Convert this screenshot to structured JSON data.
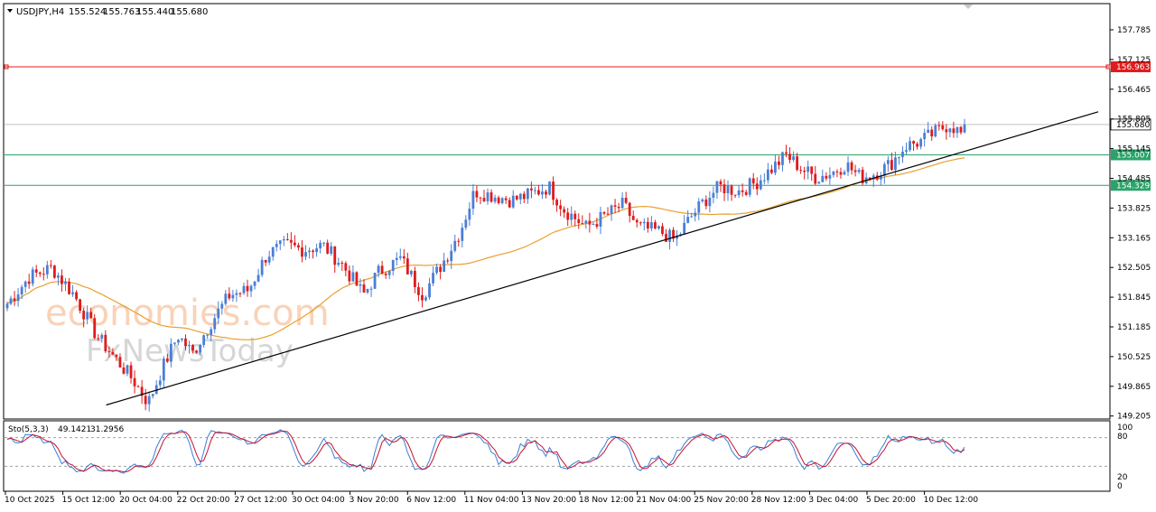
{
  "header": {
    "symbol_tf": "USDJPY,H4",
    "open": "155.524",
    "high": "155.763",
    "low": "155.440",
    "close": "155.680"
  },
  "watermark": {
    "line1": "economies.com",
    "line2": "FxNewsToday"
  },
  "chart_data": [
    {
      "type": "candlestick",
      "symbol": "USDJPY",
      "timeframe": "H4",
      "ylim": [
        149.205,
        158.2
      ],
      "y_ticks": [
        "157.785",
        "157.125",
        "156.465",
        "155.805",
        "155.145",
        "154.485",
        "153.825",
        "153.165",
        "152.505",
        "151.845",
        "151.185",
        "150.525",
        "149.865",
        "149.205"
      ],
      "x_ticks": [
        "10 Oct 2025",
        "15 Oct 12:00",
        "20 Oct 04:00",
        "22 Oct 20:00",
        "27 Oct 12:00",
        "30 Oct 04:00",
        "3 Nov 20:00",
        "6 Nov 12:00",
        "11 Nov 04:00",
        "13 Nov 20:00",
        "18 Nov 12:00",
        "21 Nov 04:00",
        "25 Nov 20:00",
        "28 Nov 12:00",
        "3 Dec 04:00",
        "5 Dec 20:00",
        "10 Dec 12:00"
      ],
      "bullish_color": "#4a7fd6",
      "bearish_color": "#e01b1b",
      "candle_count": 264,
      "close_path": [
        [
          0,
          151.7
        ],
        [
          6,
          152.3
        ],
        [
          12,
          152.5
        ],
        [
          18,
          151.9
        ],
        [
          24,
          151.0
        ],
        [
          30,
          150.4
        ],
        [
          34,
          150.0
        ],
        [
          38,
          149.5
        ],
        [
          42,
          150.3
        ],
        [
          46,
          151.0
        ],
        [
          50,
          150.6
        ],
        [
          55,
          151.3
        ],
        [
          60,
          151.9
        ],
        [
          65,
          152.0
        ],
        [
          70,
          152.8
        ],
        [
          75,
          153.0
        ],
        [
          80,
          152.9
        ],
        [
          85,
          153.0
        ],
        [
          90,
          152.6
        ],
        [
          96,
          151.9
        ],
        [
          100,
          152.4
        ],
        [
          106,
          152.7
        ],
        [
          112,
          151.9
        ],
        [
          118,
          152.7
        ],
        [
          122,
          153.3
        ],
        [
          126,
          154.2
        ],
        [
          131,
          154.1
        ],
        [
          136,
          154.0
        ],
        [
          140,
          154.1
        ],
        [
          146,
          154.3
        ],
        [
          150,
          153.8
        ],
        [
          156,
          153.4
        ],
        [
          160,
          153.6
        ],
        [
          166,
          153.9
        ],
        [
          170,
          153.4
        ],
        [
          176,
          153.3
        ],
        [
          180,
          153.1
        ],
        [
          184,
          153.6
        ],
        [
          188,
          154.0
        ],
        [
          192,
          154.3
        ],
        [
          197,
          154.2
        ],
        [
          202,
          154.4
        ],
        [
          206,
          154.7
        ],
        [
          210,
          155.0
        ],
        [
          214,
          154.7
        ],
        [
          218,
          154.5
        ],
        [
          222,
          154.6
        ],
        [
          226,
          154.8
        ],
        [
          230,
          154.5
        ],
        [
          234,
          154.6
        ],
        [
          238,
          154.8
        ],
        [
          242,
          155.2
        ],
        [
          246,
          155.3
        ],
        [
          250,
          155.5
        ],
        [
          254,
          155.7
        ],
        [
          258,
          155.4
        ]
      ],
      "candles_note_kept_in_script": true,
      "moving_average": {
        "color": "#e8a030"
      },
      "current_price": {
        "value": 155.68,
        "label": "155.680",
        "color": "#c0c0c0"
      },
      "horizontal_levels": [
        {
          "value": 156.963,
          "label": "156.963",
          "color": "#e01b1b"
        },
        {
          "value": 155.007,
          "label": "155.007",
          "color": "#2aa36a"
        },
        {
          "value": 154.329,
          "label": "154.329",
          "color": "#2aa36a"
        }
      ],
      "trendline": {
        "from": [
          "15 Oct 12:00",
          149.45
        ],
        "to": [
          "10 Dec 12:00",
          155.0
        ],
        "color": "#000000"
      }
    },
    {
      "type": "line",
      "indicator": "Sto(5,3,3)",
      "k_value": "49.1421",
      "d_value": "31.2956",
      "ylim": [
        0,
        100
      ],
      "y_ticks": [
        "100",
        "80",
        "20",
        "0"
      ],
      "levels": [
        80,
        20
      ],
      "series": [
        {
          "name": "Sto(5,3,3)",
          "color": "#3a7fd5"
        },
        {
          "name": "",
          "color": "#c8102e"
        }
      ]
    }
  ]
}
